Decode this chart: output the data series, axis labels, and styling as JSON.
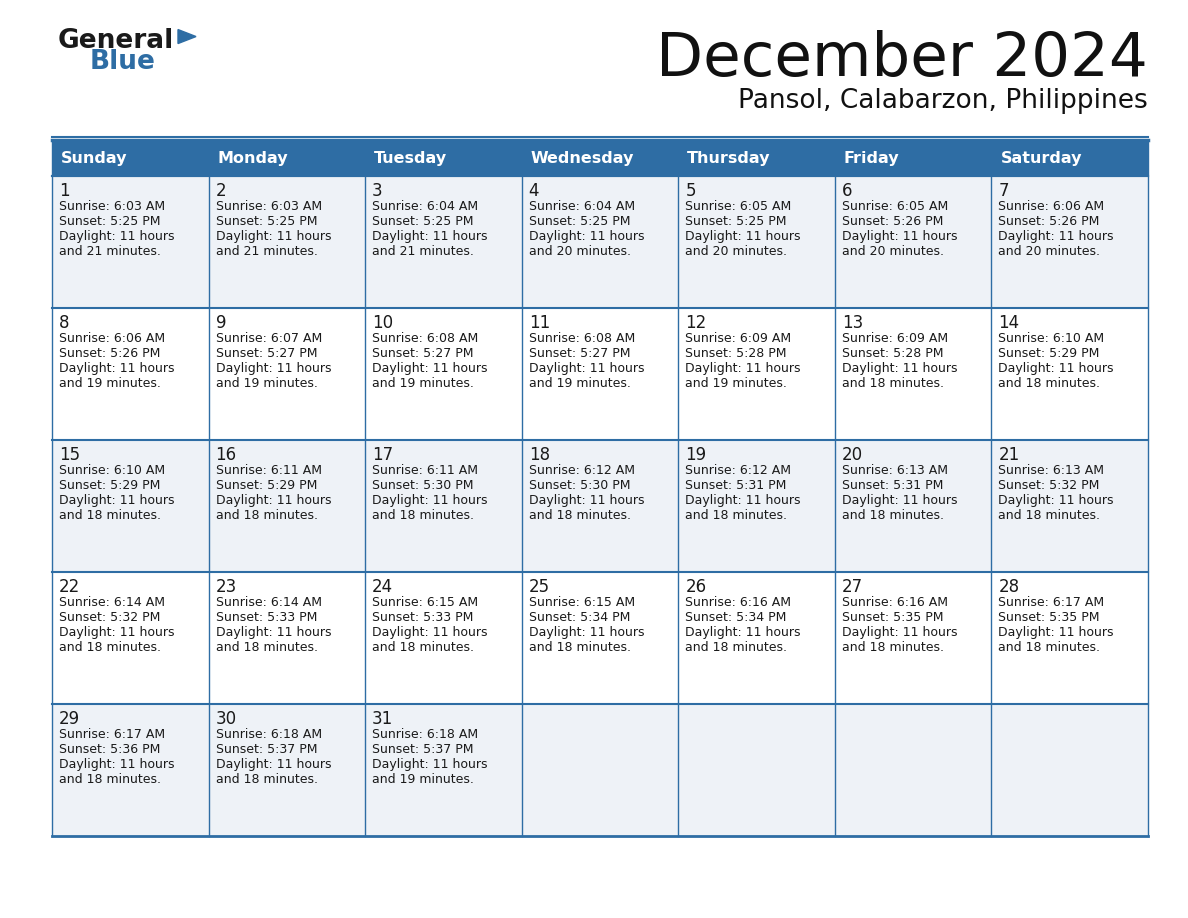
{
  "title": "December 2024",
  "subtitle": "Pansol, Calabarzon, Philippines",
  "header_color": "#2e6da4",
  "header_text_color": "#ffffff",
  "border_color": "#2e6da4",
  "cell_bg_even": "#eef2f7",
  "cell_bg_odd": "#ffffff",
  "days_of_week": [
    "Sunday",
    "Monday",
    "Tuesday",
    "Wednesday",
    "Thursday",
    "Friday",
    "Saturday"
  ],
  "calendar": [
    [
      {
        "day": 1,
        "sunrise": "6:03 AM",
        "sunset": "5:25 PM",
        "daylight_min": "21"
      },
      {
        "day": 2,
        "sunrise": "6:03 AM",
        "sunset": "5:25 PM",
        "daylight_min": "21"
      },
      {
        "day": 3,
        "sunrise": "6:04 AM",
        "sunset": "5:25 PM",
        "daylight_min": "21"
      },
      {
        "day": 4,
        "sunrise": "6:04 AM",
        "sunset": "5:25 PM",
        "daylight_min": "20"
      },
      {
        "day": 5,
        "sunrise": "6:05 AM",
        "sunset": "5:25 PM",
        "daylight_min": "20"
      },
      {
        "day": 6,
        "sunrise": "6:05 AM",
        "sunset": "5:26 PM",
        "daylight_min": "20"
      },
      {
        "day": 7,
        "sunrise": "6:06 AM",
        "sunset": "5:26 PM",
        "daylight_min": "20"
      }
    ],
    [
      {
        "day": 8,
        "sunrise": "6:06 AM",
        "sunset": "5:26 PM",
        "daylight_min": "19"
      },
      {
        "day": 9,
        "sunrise": "6:07 AM",
        "sunset": "5:27 PM",
        "daylight_min": "19"
      },
      {
        "day": 10,
        "sunrise": "6:08 AM",
        "sunset": "5:27 PM",
        "daylight_min": "19"
      },
      {
        "day": 11,
        "sunrise": "6:08 AM",
        "sunset": "5:27 PM",
        "daylight_min": "19"
      },
      {
        "day": 12,
        "sunrise": "6:09 AM",
        "sunset": "5:28 PM",
        "daylight_min": "19"
      },
      {
        "day": 13,
        "sunrise": "6:09 AM",
        "sunset": "5:28 PM",
        "daylight_min": "18"
      },
      {
        "day": 14,
        "sunrise": "6:10 AM",
        "sunset": "5:29 PM",
        "daylight_min": "18"
      }
    ],
    [
      {
        "day": 15,
        "sunrise": "6:10 AM",
        "sunset": "5:29 PM",
        "daylight_min": "18"
      },
      {
        "day": 16,
        "sunrise": "6:11 AM",
        "sunset": "5:29 PM",
        "daylight_min": "18"
      },
      {
        "day": 17,
        "sunrise": "6:11 AM",
        "sunset": "5:30 PM",
        "daylight_min": "18"
      },
      {
        "day": 18,
        "sunrise": "6:12 AM",
        "sunset": "5:30 PM",
        "daylight_min": "18"
      },
      {
        "day": 19,
        "sunrise": "6:12 AM",
        "sunset": "5:31 PM",
        "daylight_min": "18"
      },
      {
        "day": 20,
        "sunrise": "6:13 AM",
        "sunset": "5:31 PM",
        "daylight_min": "18"
      },
      {
        "day": 21,
        "sunrise": "6:13 AM",
        "sunset": "5:32 PM",
        "daylight_min": "18"
      }
    ],
    [
      {
        "day": 22,
        "sunrise": "6:14 AM",
        "sunset": "5:32 PM",
        "daylight_min": "18"
      },
      {
        "day": 23,
        "sunrise": "6:14 AM",
        "sunset": "5:33 PM",
        "daylight_min": "18"
      },
      {
        "day": 24,
        "sunrise": "6:15 AM",
        "sunset": "5:33 PM",
        "daylight_min": "18"
      },
      {
        "day": 25,
        "sunrise": "6:15 AM",
        "sunset": "5:34 PM",
        "daylight_min": "18"
      },
      {
        "day": 26,
        "sunrise": "6:16 AM",
        "sunset": "5:34 PM",
        "daylight_min": "18"
      },
      {
        "day": 27,
        "sunrise": "6:16 AM",
        "sunset": "5:35 PM",
        "daylight_min": "18"
      },
      {
        "day": 28,
        "sunrise": "6:17 AM",
        "sunset": "5:35 PM",
        "daylight_min": "18"
      }
    ],
    [
      {
        "day": 29,
        "sunrise": "6:17 AM",
        "sunset": "5:36 PM",
        "daylight_min": "18"
      },
      {
        "day": 30,
        "sunrise": "6:18 AM",
        "sunset": "5:37 PM",
        "daylight_min": "18"
      },
      {
        "day": 31,
        "sunrise": "6:18 AM",
        "sunset": "5:37 PM",
        "daylight_min": "19"
      },
      null,
      null,
      null,
      null
    ]
  ],
  "logo_general_color": "#1a1a1a",
  "logo_blue_color": "#2e6da4",
  "logo_triangle_color": "#2e6da4"
}
